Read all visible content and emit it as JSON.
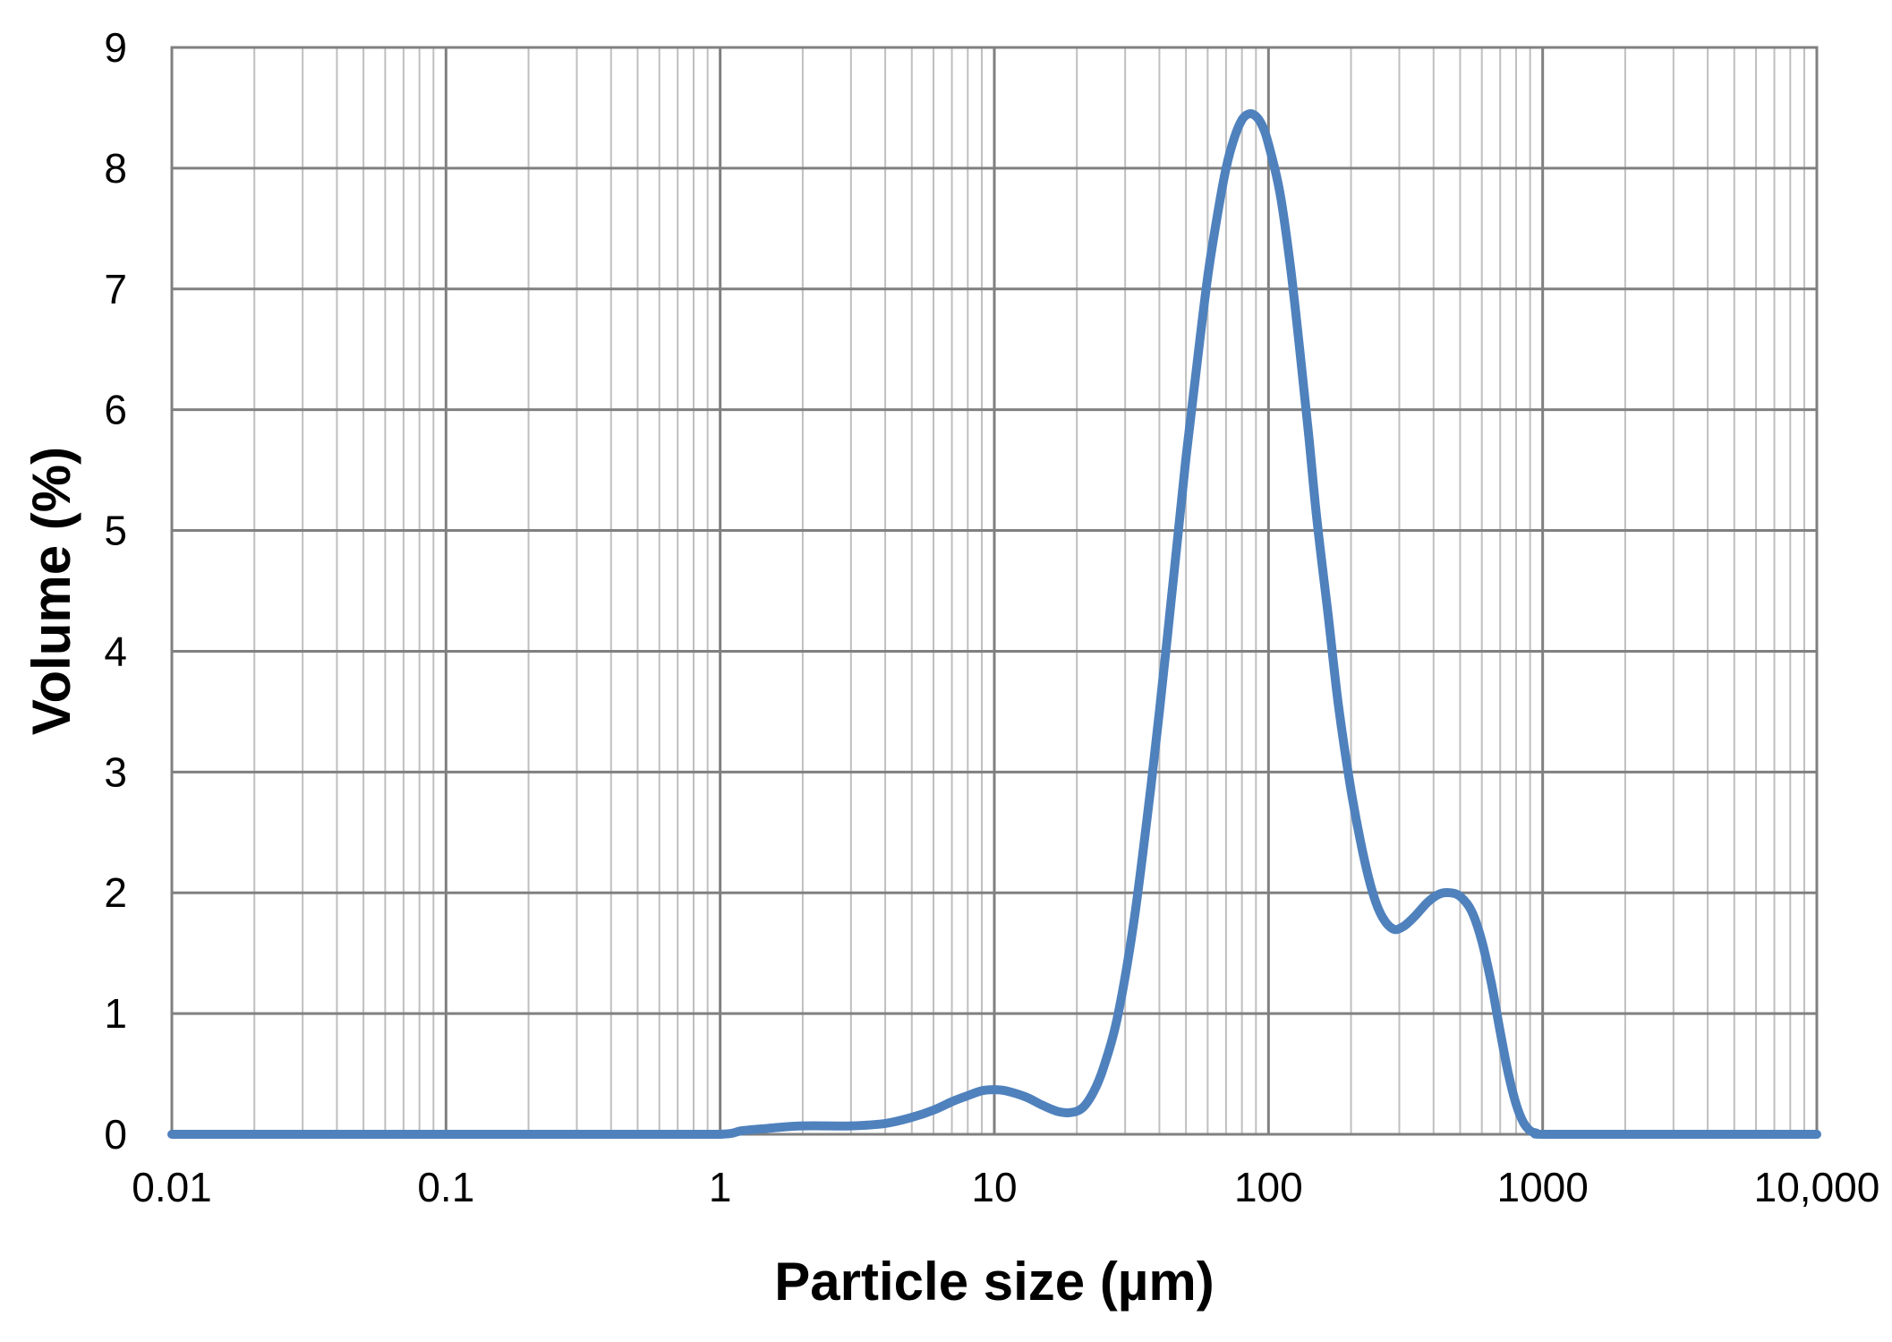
{
  "chart_data": {
    "type": "line",
    "title": "",
    "xlabel": "Particle size (µm)",
    "ylabel": "Volume (%)",
    "x_scale": "log",
    "xlim": [
      0.01,
      10000
    ],
    "ylim": [
      0,
      9
    ],
    "x_tick_labels": [
      "0.01",
      "0.1",
      "1",
      "10",
      "100",
      "1000",
      "10,000"
    ],
    "x_tick_values": [
      0.01,
      0.1,
      1,
      10,
      100,
      1000,
      10000
    ],
    "y_tick_labels": [
      "0",
      "1",
      "2",
      "3",
      "4",
      "5",
      "6",
      "7",
      "8",
      "9"
    ],
    "y_tick_values": [
      0,
      1,
      2,
      3,
      4,
      5,
      6,
      7,
      8,
      9
    ],
    "grid": true,
    "minor_grid": true,
    "legend": "none",
    "series_color": "#4f81bd",
    "series": [
      {
        "points": [
          [
            0.01,
            0
          ],
          [
            0.1,
            0
          ],
          [
            0.5,
            0
          ],
          [
            1,
            0
          ],
          [
            1.2,
            0.03
          ],
          [
            1.5,
            0.05
          ],
          [
            2,
            0.07
          ],
          [
            3,
            0.07
          ],
          [
            4,
            0.09
          ],
          [
            5,
            0.14
          ],
          [
            6,
            0.2
          ],
          [
            7,
            0.27
          ],
          [
            8,
            0.32
          ],
          [
            9,
            0.36
          ],
          [
            10,
            0.37
          ],
          [
            11,
            0.36
          ],
          [
            13,
            0.31
          ],
          [
            15,
            0.24
          ],
          [
            17,
            0.19
          ],
          [
            19,
            0.18
          ],
          [
            21,
            0.22
          ],
          [
            23,
            0.35
          ],
          [
            25,
            0.55
          ],
          [
            28,
            0.95
          ],
          [
            32,
            1.7
          ],
          [
            36,
            2.6
          ],
          [
            40,
            3.5
          ],
          [
            45,
            4.6
          ],
          [
            50,
            5.6
          ],
          [
            55,
            6.4
          ],
          [
            60,
            7.1
          ],
          [
            65,
            7.6
          ],
          [
            70,
            8.0
          ],
          [
            75,
            8.25
          ],
          [
            80,
            8.4
          ],
          [
            85,
            8.45
          ],
          [
            90,
            8.43
          ],
          [
            95,
            8.35
          ],
          [
            100,
            8.2
          ],
          [
            110,
            7.8
          ],
          [
            120,
            7.2
          ],
          [
            130,
            6.5
          ],
          [
            140,
            5.8
          ],
          [
            150,
            5.1
          ],
          [
            165,
            4.3
          ],
          [
            180,
            3.55
          ],
          [
            200,
            2.85
          ],
          [
            220,
            2.35
          ],
          [
            240,
            2.0
          ],
          [
            260,
            1.8
          ],
          [
            285,
            1.7
          ],
          [
            310,
            1.72
          ],
          [
            340,
            1.8
          ],
          [
            380,
            1.92
          ],
          [
            420,
            1.99
          ],
          [
            460,
            2.0
          ],
          [
            500,
            1.97
          ],
          [
            550,
            1.85
          ],
          [
            600,
            1.6
          ],
          [
            650,
            1.25
          ],
          [
            700,
            0.85
          ],
          [
            750,
            0.5
          ],
          [
            800,
            0.25
          ],
          [
            850,
            0.1
          ],
          [
            900,
            0.03
          ],
          [
            950,
            0.01
          ],
          [
            1000,
            0
          ],
          [
            2000,
            0
          ],
          [
            5000,
            0
          ],
          [
            10000,
            0
          ]
        ]
      }
    ]
  }
}
